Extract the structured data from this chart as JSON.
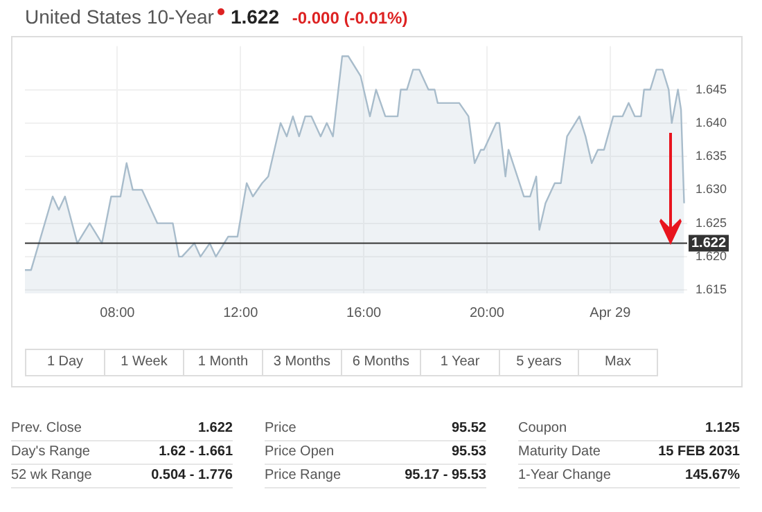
{
  "chart_data": {
    "type": "area",
    "title": "United States 10-Year",
    "annotations": [
      "1.622",
      "-0.000 (-0.01%)",
      "1 Day",
      "1 Week",
      "1 Month",
      "3 Months",
      "6 Months",
      "1 Year",
      "5 years",
      "Max",
      "Prev. Close",
      "1.622",
      "Day's Range",
      "1.62 - 1.661",
      "52 wk Range",
      "0.504 - 1.776",
      "Price",
      "95.52",
      "Price Open",
      "95.53",
      "Price Range",
      "95.17 - 95.53",
      "Coupon",
      "1.125",
      "Maturity Date",
      "15 FEB 2031",
      "1-Year Change",
      "145.67%"
    ],
    "x": [
      5.0,
      5.2,
      5.9,
      6.1,
      6.3,
      6.7,
      7.1,
      7.5,
      7.8,
      8.1,
      8.3,
      8.5,
      8.8,
      9.3,
      9.8,
      10.0,
      10.1,
      10.5,
      10.7,
      11.0,
      11.2,
      11.6,
      11.9,
      12.2,
      12.4,
      12.7,
      12.9,
      13.3,
      13.5,
      13.7,
      13.9,
      14.1,
      14.3,
      14.6,
      14.8,
      15.0,
      15.3,
      15.5,
      15.9,
      16.2,
      16.4,
      16.7,
      17.1,
      17.2,
      17.4,
      17.6,
      17.8,
      18.1,
      18.3,
      18.4,
      19.1,
      19.4,
      19.6,
      19.8,
      19.9,
      20.3,
      20.4,
      20.6,
      20.7,
      21.2,
      21.4,
      21.6,
      21.7,
      21.9,
      22.2,
      22.4,
      22.6,
      23.0,
      23.2,
      23.4,
      23.6,
      23.8,
      24.1,
      24.4,
      24.6,
      24.8,
      25.0,
      25.1,
      25.3,
      25.5,
      25.7,
      25.9,
      26.0,
      26.2,
      26.3,
      26.4
    ],
    "series": [
      {
        "color": "#a8bccb",
        "values": [
          1.618,
          1.618,
          1.629,
          1.627,
          1.629,
          1.622,
          1.625,
          1.622,
          1.629,
          1.629,
          1.634,
          1.63,
          1.63,
          1.625,
          1.625,
          1.62,
          1.62,
          1.622,
          1.62,
          1.622,
          1.62,
          1.623,
          1.623,
          1.631,
          1.629,
          1.631,
          1.632,
          1.64,
          1.638,
          1.641,
          1.638,
          1.641,
          1.641,
          1.638,
          1.64,
          1.638,
          1.65,
          1.65,
          1.647,
          1.641,
          1.645,
          1.641,
          1.641,
          1.645,
          1.645,
          1.648,
          1.648,
          1.645,
          1.645,
          1.643,
          1.643,
          1.641,
          1.634,
          1.636,
          1.636,
          1.64,
          1.64,
          1.632,
          1.636,
          1.629,
          1.629,
          1.632,
          1.624,
          1.628,
          1.631,
          1.631,
          1.638,
          1.641,
          1.638,
          1.634,
          1.636,
          1.636,
          1.641,
          1.641,
          1.643,
          1.641,
          1.641,
          1.645,
          1.645,
          1.648,
          1.648,
          1.645,
          1.64,
          1.645,
          1.642,
          1.628
        ]
      }
    ],
    "xlim": [
      5,
      26.5
    ],
    "xticks": [
      {
        "value": 8,
        "label": "08:00"
      },
      {
        "value": 12,
        "label": "12:00"
      },
      {
        "value": 16,
        "label": "16:00"
      },
      {
        "value": 20,
        "label": "20:00"
      },
      {
        "value": 24,
        "label": "Apr 29"
      }
    ],
    "ylim": [
      1.6145,
      1.6515
    ],
    "yticks": [
      1.615,
      {
        "value": 1.62,
        "label": "1.620"
      },
      1.625,
      {
        "value": 1.63,
        "label": "1.630"
      },
      1.635,
      {
        "value": 1.64,
        "label": "1.640"
      },
      1.645
    ],
    "ref_lines": [
      {
        "axis": "y",
        "value": 1.622,
        "label": "1.622",
        "color": "#333333"
      }
    ],
    "grid": true,
    "legend": false,
    "marker": "none",
    "line_style": "solid"
  }
}
